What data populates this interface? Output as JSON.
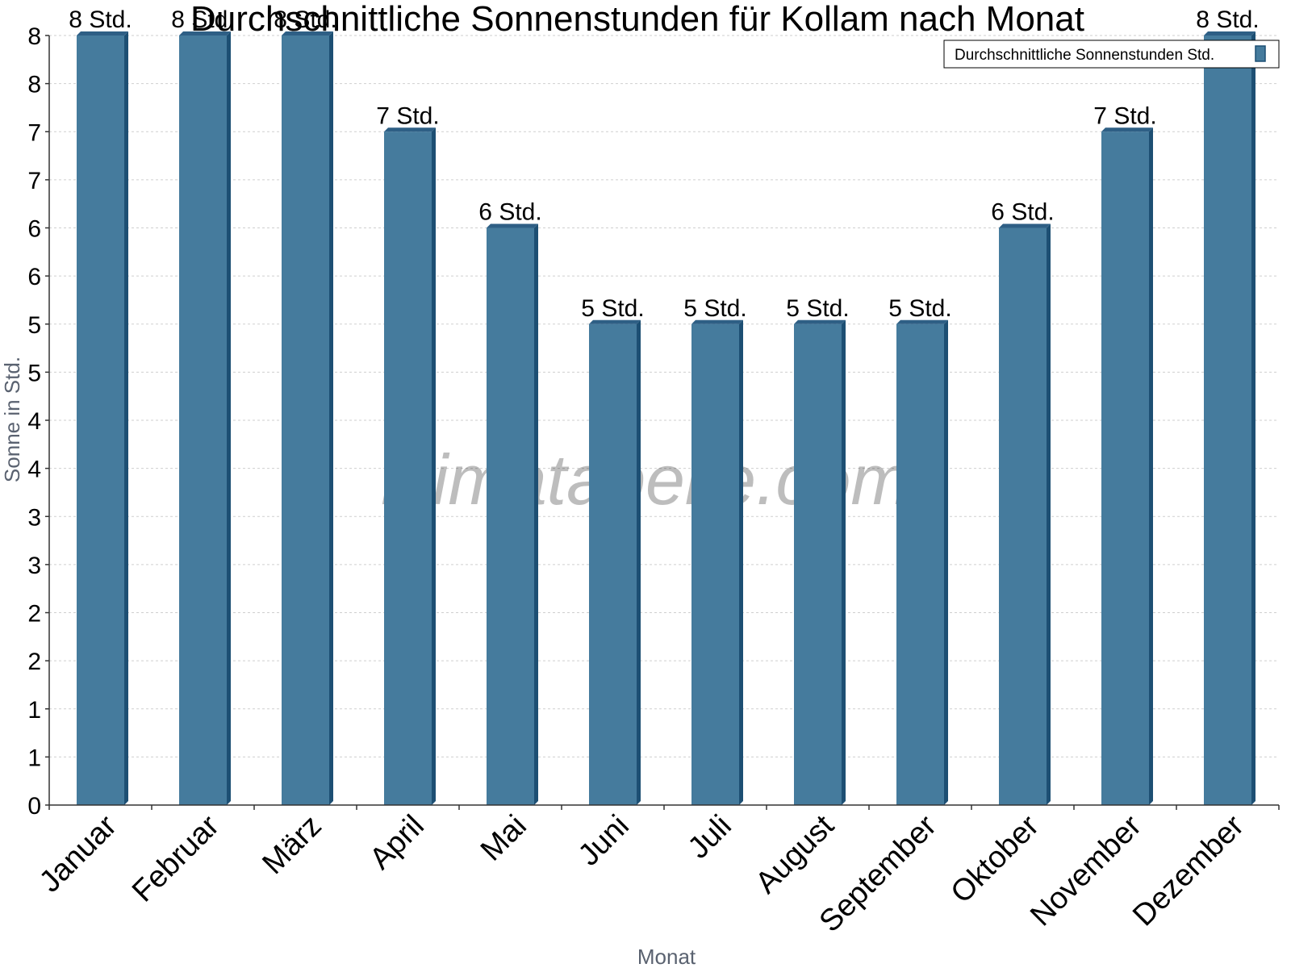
{
  "chart_data": {
    "type": "bar",
    "title": "Durchschnittliche Sonnenstunden für Kollam nach Monat",
    "xlabel": "Monat",
    "ylabel": "Sonne in Std.",
    "categories": [
      "Januar",
      "Februar",
      "März",
      "April",
      "Mai",
      "Juni",
      "Juli",
      "August",
      "September",
      "Oktober",
      "November",
      "Dezember"
    ],
    "series": [
      {
        "name": "Durchschnittliche Sonnenstunden Std.",
        "values": [
          8,
          8,
          8,
          7,
          6,
          5,
          5,
          5,
          5,
          6,
          7,
          8
        ],
        "labels": [
          "8 Std.",
          "8 Std.",
          "8 Std.",
          "7 Std.",
          "6 Std.",
          "5 Std.",
          "5 Std.",
          "5 Std.",
          "5 Std.",
          "6 Std.",
          "7 Std.",
          "8 Std."
        ]
      }
    ],
    "ylim": [
      0,
      8
    ],
    "yticks": [
      0,
      0.5,
      1,
      1.5,
      2,
      2.5,
      3,
      3.5,
      4,
      4.5,
      5,
      5.5,
      6,
      6.5,
      7,
      7.5,
      8
    ],
    "ytick_labels": [
      "0",
      "1",
      "1",
      "2",
      "2",
      "3",
      "3",
      "4",
      "4",
      "5",
      "5",
      "6",
      "6",
      "7",
      "7",
      "8",
      "8"
    ],
    "grid": true,
    "legend_position": "top-right",
    "colors": {
      "bar": "#457b9d",
      "bar_side": "#1d4f73",
      "bar_top": "#2e5f85"
    }
  },
  "watermark": "klimatabelle.com"
}
